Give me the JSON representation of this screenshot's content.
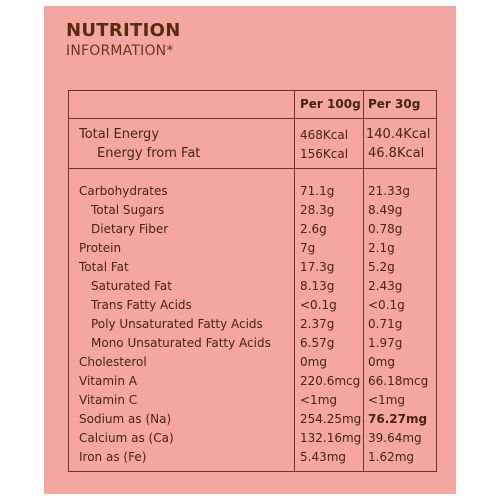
{
  "header": {
    "title": "NUTRITION",
    "subtitle": "INFORMATION*"
  },
  "table": {
    "col1_header": "Per 100g",
    "col2_header": "Per 30g",
    "energy_rows": [
      {
        "name": "Total Energy",
        "per100": "468Kcal",
        "per30": "140.4Kcal"
      },
      {
        "name": "Energy from Fat",
        "per100": "156Kcal",
        "per30": "46.8Kcal"
      }
    ],
    "rows": [
      {
        "name": "Carbohydrates",
        "per100": "71.1g",
        "per30": "21.33g"
      },
      {
        "name": "Total Sugars",
        "per100": "28.3g",
        "per30": "8.49g"
      },
      {
        "name": "Dietary Fiber",
        "per100": "2.6g",
        "per30": "0.78g"
      },
      {
        "name": "Protein",
        "per100": "7g",
        "per30": "2.1g"
      },
      {
        "name": "Total Fat",
        "per100": "17.3g",
        "per30": "5.2g"
      },
      {
        "name": "Saturated Fat",
        "per100": "8.13g",
        "per30": "2.43g"
      },
      {
        "name": "Trans Fatty Acids",
        "per100": "<0.1g",
        "per30": "<0.1g"
      },
      {
        "name": "Poly Unsaturated Fatty Acids",
        "per100": "2.37g",
        "per30": "0.71g"
      },
      {
        "name": "Mono Unsaturated Fatty Acids",
        "per100": "6.57g",
        "per30": "1.97g"
      },
      {
        "name": "Cholesterol",
        "per100": "0mg",
        "per30": "0mg"
      },
      {
        "name": "Vitamin A",
        "per100": "220.6mcg",
        "per30": "66.18mcg"
      },
      {
        "name": "Vitamin C",
        "per100": "<1mg",
        "per30": "<1mg"
      },
      {
        "name": "Sodium as (Na)",
        "per100": "254.25mg",
        "per30": "76.27mg"
      },
      {
        "name": "Calcium as (Ca)",
        "per100": "132.16mg",
        "per30": "39.64mg"
      },
      {
        "name": "Iron as (Fe)",
        "per100": "5.43mg",
        "per30": "1.62mg"
      }
    ]
  },
  "colors": {
    "background": "#f4a6a0",
    "text": "#5a2a10",
    "rule": "#6b3a1e"
  }
}
